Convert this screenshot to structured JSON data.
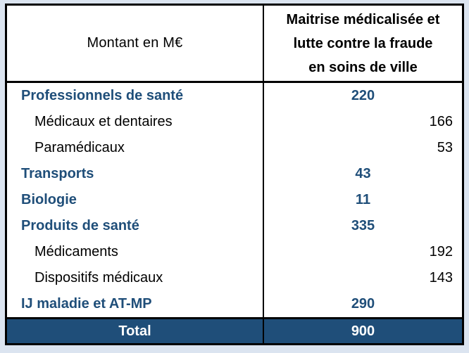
{
  "page": {
    "background_color": "#dbe4f0"
  },
  "colors": {
    "accent_navy": "#1f4e79",
    "border_black": "#000000",
    "cell_background": "#ffffff",
    "total_row_background": "#1f4e79",
    "total_row_text": "#ffffff"
  },
  "table": {
    "header": {
      "left": "Montant en M€",
      "right_lines": [
        "Maitrise médicalisée et",
        "lutte contre la fraude",
        "en soins de ville"
      ]
    },
    "rows": [
      {
        "label": "Professionnels de santé",
        "value": "220",
        "level": "category"
      },
      {
        "label": "Médicaux et dentaires",
        "value": "166",
        "level": "sub"
      },
      {
        "label": "Paramédicaux",
        "value": "53",
        "level": "sub"
      },
      {
        "label": "Transports",
        "value": "43",
        "level": "category"
      },
      {
        "label": "Biologie",
        "value": "11",
        "level": "category"
      },
      {
        "label": "Produits de santé",
        "value": "335",
        "level": "category"
      },
      {
        "label": "Médicaments",
        "value": "192",
        "level": "sub"
      },
      {
        "label": "Dispositifs médicaux",
        "value": "143",
        "level": "sub"
      },
      {
        "label": "IJ maladie et AT-MP",
        "value": "290",
        "level": "category"
      }
    ],
    "total": {
      "label": "Total",
      "value": "900"
    }
  }
}
